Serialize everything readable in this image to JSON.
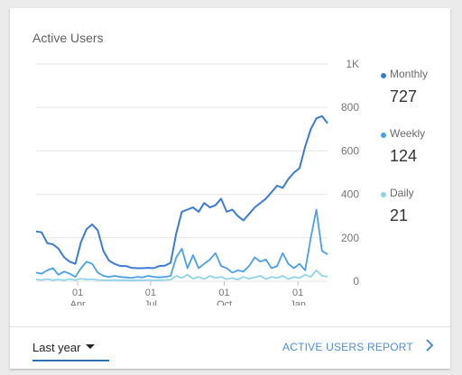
{
  "card": {
    "title": "Active Users"
  },
  "legend": [
    {
      "label": "Monthly",
      "value": "727",
      "color": "#3a7bd5"
    },
    {
      "label": "Weekly",
      "value": "124",
      "color": "#4aa0e8"
    },
    {
      "label": "Daily",
      "value": "21",
      "color": "#8fd3e8"
    }
  ],
  "footer": {
    "period": "Last year",
    "report_link": "ACTIVE USERS REPORT",
    "icons": {
      "period_caret": "caret-down-icon",
      "report_chevron": "chevron-right-icon"
    }
  },
  "chart_data": {
    "type": "line",
    "title": "Active Users",
    "xlabel": "",
    "ylabel": "",
    "y_axis_position": "right",
    "y_ticks": [
      {
        "value": 0,
        "label": "0"
      },
      {
        "value": 200,
        "label": "200"
      },
      {
        "value": 400,
        "label": "400"
      },
      {
        "value": 600,
        "label": "600"
      },
      {
        "value": 800,
        "label": "800"
      },
      {
        "value": 1000,
        "label": "1K"
      }
    ],
    "ylim": [
      0,
      1000
    ],
    "x_range": [
      "2020-02-09",
      "2021-02-07"
    ],
    "x_ticks": [
      {
        "date": "2020-04-01",
        "line1": "01",
        "line2": "Apr"
      },
      {
        "date": "2020-07-01",
        "line1": "01",
        "line2": "Jul"
      },
      {
        "date": "2020-10-01",
        "line1": "01",
        "line2": "Oct"
      },
      {
        "date": "2021-01-01",
        "line1": "01",
        "line2": "Jan"
      }
    ],
    "grid": true,
    "legend_position": "right",
    "series": [
      {
        "name": "Monthly",
        "color": "#3a7bd5",
        "points": [
          [
            "2020-02-09",
            230
          ],
          [
            "2020-02-16",
            225
          ],
          [
            "2020-02-23",
            175
          ],
          [
            "2020-03-01",
            170
          ],
          [
            "2020-03-08",
            150
          ],
          [
            "2020-03-15",
            110
          ],
          [
            "2020-03-22",
            90
          ],
          [
            "2020-03-29",
            80
          ],
          [
            "2020-04-05",
            180
          ],
          [
            "2020-04-12",
            240
          ],
          [
            "2020-04-19",
            262
          ],
          [
            "2020-04-26",
            235
          ],
          [
            "2020-05-03",
            140
          ],
          [
            "2020-05-10",
            95
          ],
          [
            "2020-05-17",
            80
          ],
          [
            "2020-05-24",
            70
          ],
          [
            "2020-05-31",
            70
          ],
          [
            "2020-06-07",
            62
          ],
          [
            "2020-06-14",
            60
          ],
          [
            "2020-06-21",
            60
          ],
          [
            "2020-06-28",
            62
          ],
          [
            "2020-07-05",
            60
          ],
          [
            "2020-07-12",
            70
          ],
          [
            "2020-07-19",
            72
          ],
          [
            "2020-07-26",
            85
          ],
          [
            "2020-08-02",
            220
          ],
          [
            "2020-08-09",
            320
          ],
          [
            "2020-08-16",
            330
          ],
          [
            "2020-08-23",
            340
          ],
          [
            "2020-08-30",
            320
          ],
          [
            "2020-09-06",
            360
          ],
          [
            "2020-09-13",
            340
          ],
          [
            "2020-09-20",
            350
          ],
          [
            "2020-09-27",
            380
          ],
          [
            "2020-10-04",
            320
          ],
          [
            "2020-10-11",
            330
          ],
          [
            "2020-10-18",
            300
          ],
          [
            "2020-10-25",
            280
          ],
          [
            "2020-11-01",
            310
          ],
          [
            "2020-11-08",
            340
          ],
          [
            "2020-11-15",
            360
          ],
          [
            "2020-11-22",
            380
          ],
          [
            "2020-11-29",
            410
          ],
          [
            "2020-12-06",
            440
          ],
          [
            "2020-12-13",
            430
          ],
          [
            "2020-12-20",
            470
          ],
          [
            "2020-12-27",
            500
          ],
          [
            "2021-01-03",
            520
          ],
          [
            "2021-01-10",
            620
          ],
          [
            "2021-01-17",
            700
          ],
          [
            "2021-01-24",
            750
          ],
          [
            "2021-01-31",
            760
          ],
          [
            "2021-02-07",
            727
          ]
        ]
      },
      {
        "name": "Weekly",
        "color": "#4aa0e8",
        "points": [
          [
            "2020-02-09",
            40
          ],
          [
            "2020-02-16",
            35
          ],
          [
            "2020-02-23",
            50
          ],
          [
            "2020-03-01",
            60
          ],
          [
            "2020-03-08",
            30
          ],
          [
            "2020-03-15",
            45
          ],
          [
            "2020-03-22",
            35
          ],
          [
            "2020-03-29",
            20
          ],
          [
            "2020-04-05",
            60
          ],
          [
            "2020-04-12",
            90
          ],
          [
            "2020-04-19",
            80
          ],
          [
            "2020-04-26",
            40
          ],
          [
            "2020-05-03",
            25
          ],
          [
            "2020-05-10",
            20
          ],
          [
            "2020-05-17",
            25
          ],
          [
            "2020-05-24",
            20
          ],
          [
            "2020-05-31",
            18
          ],
          [
            "2020-06-07",
            15
          ],
          [
            "2020-06-14",
            20
          ],
          [
            "2020-06-21",
            18
          ],
          [
            "2020-06-28",
            25
          ],
          [
            "2020-07-05",
            20
          ],
          [
            "2020-07-12",
            18
          ],
          [
            "2020-07-19",
            20
          ],
          [
            "2020-07-26",
            25
          ],
          [
            "2020-08-02",
            110
          ],
          [
            "2020-08-09",
            150
          ],
          [
            "2020-08-16",
            60
          ],
          [
            "2020-08-23",
            120
          ],
          [
            "2020-08-30",
            60
          ],
          [
            "2020-09-06",
            80
          ],
          [
            "2020-09-13",
            100
          ],
          [
            "2020-09-20",
            130
          ],
          [
            "2020-09-27",
            70
          ],
          [
            "2020-10-04",
            60
          ],
          [
            "2020-10-11",
            40
          ],
          [
            "2020-10-18",
            50
          ],
          [
            "2020-10-25",
            45
          ],
          [
            "2020-11-01",
            70
          ],
          [
            "2020-11-08",
            110
          ],
          [
            "2020-11-15",
            90
          ],
          [
            "2020-11-22",
            100
          ],
          [
            "2020-11-29",
            60
          ],
          [
            "2020-12-06",
            70
          ],
          [
            "2020-12-13",
            130
          ],
          [
            "2020-12-20",
            80
          ],
          [
            "2020-12-27",
            60
          ],
          [
            "2021-01-03",
            80
          ],
          [
            "2021-01-10",
            50
          ],
          [
            "2021-01-17",
            200
          ],
          [
            "2021-01-24",
            330
          ],
          [
            "2021-01-31",
            140
          ],
          [
            "2021-02-07",
            124
          ]
        ]
      },
      {
        "name": "Daily",
        "color": "#8fd3e8",
        "points": [
          [
            "2020-02-09",
            8
          ],
          [
            "2020-02-16",
            6
          ],
          [
            "2020-02-23",
            10
          ],
          [
            "2020-03-01",
            5
          ],
          [
            "2020-03-08",
            8
          ],
          [
            "2020-03-15",
            5
          ],
          [
            "2020-03-22",
            10
          ],
          [
            "2020-03-29",
            6
          ],
          [
            "2020-04-05",
            12
          ],
          [
            "2020-04-12",
            8
          ],
          [
            "2020-04-19",
            10
          ],
          [
            "2020-04-26",
            6
          ],
          [
            "2020-05-03",
            5
          ],
          [
            "2020-05-10",
            4
          ],
          [
            "2020-05-17",
            6
          ],
          [
            "2020-05-24",
            4
          ],
          [
            "2020-05-31",
            5
          ],
          [
            "2020-06-07",
            3
          ],
          [
            "2020-06-14",
            5
          ],
          [
            "2020-06-21",
            4
          ],
          [
            "2020-06-28",
            6
          ],
          [
            "2020-07-05",
            4
          ],
          [
            "2020-07-12",
            5
          ],
          [
            "2020-07-19",
            6
          ],
          [
            "2020-07-26",
            8
          ],
          [
            "2020-08-02",
            25
          ],
          [
            "2020-08-09",
            15
          ],
          [
            "2020-08-16",
            30
          ],
          [
            "2020-08-23",
            12
          ],
          [
            "2020-08-30",
            20
          ],
          [
            "2020-09-06",
            10
          ],
          [
            "2020-09-13",
            25
          ],
          [
            "2020-09-20",
            15
          ],
          [
            "2020-09-27",
            20
          ],
          [
            "2020-10-04",
            10
          ],
          [
            "2020-10-11",
            15
          ],
          [
            "2020-10-18",
            8
          ],
          [
            "2020-10-25",
            20
          ],
          [
            "2020-11-01",
            12
          ],
          [
            "2020-11-08",
            18
          ],
          [
            "2020-11-15",
            25
          ],
          [
            "2020-11-22",
            10
          ],
          [
            "2020-11-29",
            20
          ],
          [
            "2020-12-06",
            15
          ],
          [
            "2020-12-13",
            25
          ],
          [
            "2020-12-20",
            10
          ],
          [
            "2020-12-27",
            20
          ],
          [
            "2021-01-03",
            15
          ],
          [
            "2021-01-10",
            30
          ],
          [
            "2021-01-17",
            20
          ],
          [
            "2021-01-24",
            50
          ],
          [
            "2021-01-31",
            25
          ],
          [
            "2021-02-07",
            21
          ]
        ]
      }
    ]
  }
}
